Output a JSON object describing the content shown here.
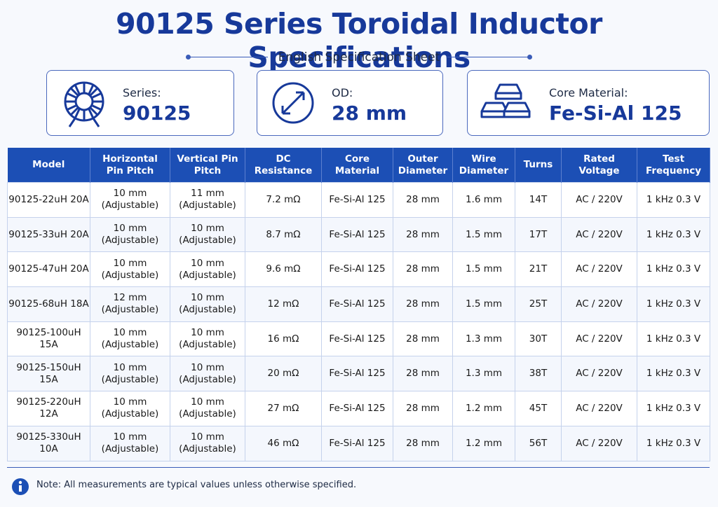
{
  "header": {
    "title": "90125 Series Toroidal Inductor Specifications",
    "subtitle": "English Specification Sheet"
  },
  "cards": [
    {
      "label": "Series:",
      "value": "90125"
    },
    {
      "label": "OD:",
      "value": "28 mm"
    },
    {
      "label": "Core Material:",
      "value": "Fe-Si-Al 125"
    }
  ],
  "table": {
    "columns": [
      "Model",
      "Horizontal Pin Pitch",
      "Vertical Pin Pitch",
      "DC Resistance",
      "Core Material",
      "Outer Diameter",
      "Wire Diameter",
      "Turns",
      "Rated Voltage",
      "Test Frequency"
    ],
    "rows": [
      [
        "90125-22uH 20A",
        [
          "10 mm",
          "(Adjustable)"
        ],
        [
          "11 mm",
          "(Adjustable)"
        ],
        "7.2 mΩ",
        "Fe-Si-Al 125",
        "28 mm",
        "1.6 mm",
        "14T",
        "AC / 220V",
        "1 kHz 0.3 V"
      ],
      [
        "90125-33uH 20A",
        [
          "10 mm",
          "(Adjustable)"
        ],
        [
          "10 mm",
          "(Adjustable)"
        ],
        "8.7 mΩ",
        "Fe-Si-Al 125",
        "28 mm",
        "1.5 mm",
        "17T",
        "AC / 220V",
        "1 kHz 0.3 V"
      ],
      [
        "90125-47uH 20A",
        [
          "10 mm",
          "(Adjustable)"
        ],
        [
          "10 mm",
          "(Adjustable)"
        ],
        "9.6 mΩ",
        "Fe-Si-Al 125",
        "28 mm",
        "1.5 mm",
        "21T",
        "AC / 220V",
        "1 kHz 0.3 V"
      ],
      [
        "90125-68uH 18A",
        [
          "12 mm",
          "(Adjustable)"
        ],
        [
          "10 mm",
          "(Adjustable)"
        ],
        "12 mΩ",
        "Fe-Si-Al 125",
        "28 mm",
        "1.5 mm",
        "25T",
        "AC / 220V",
        "1 kHz 0.3 V"
      ],
      [
        "90125-100uH 15A",
        [
          "10 mm",
          "(Adjustable)"
        ],
        [
          "10 mm",
          "(Adjustable)"
        ],
        "16 mΩ",
        "Fe-Si-Al 125",
        "28 mm",
        "1.3 mm",
        "30T",
        "AC / 220V",
        "1 kHz 0.3 V"
      ],
      [
        "90125-150uH 15A",
        [
          "10 mm",
          "(Adjustable)"
        ],
        [
          "10 mm",
          "(Adjustable)"
        ],
        "20 mΩ",
        "Fe-Si-Al 125",
        "28 mm",
        "1.3 mm",
        "38T",
        "AC / 220V",
        "1 kHz 0.3 V"
      ],
      [
        "90125-220uH 12A",
        [
          "10 mm",
          "(Adjustable)"
        ],
        [
          "10 mm",
          "(Adjustable)"
        ],
        "27 mΩ",
        "Fe-Si-Al 125",
        "28 mm",
        "1.2 mm",
        "45T",
        "AC / 220V",
        "1 kHz 0.3 V"
      ],
      [
        "90125-330uH 10A",
        [
          "10 mm",
          "(Adjustable)"
        ],
        [
          "10 mm",
          "(Adjustable)"
        ],
        "46 mΩ",
        "Fe-Si-Al 125",
        "28 mm",
        "1.2 mm",
        "56T",
        "AC / 220V",
        "1 kHz 0.3 V"
      ]
    ]
  },
  "note": "Note: All measurements are typical values unless otherwise specified."
}
